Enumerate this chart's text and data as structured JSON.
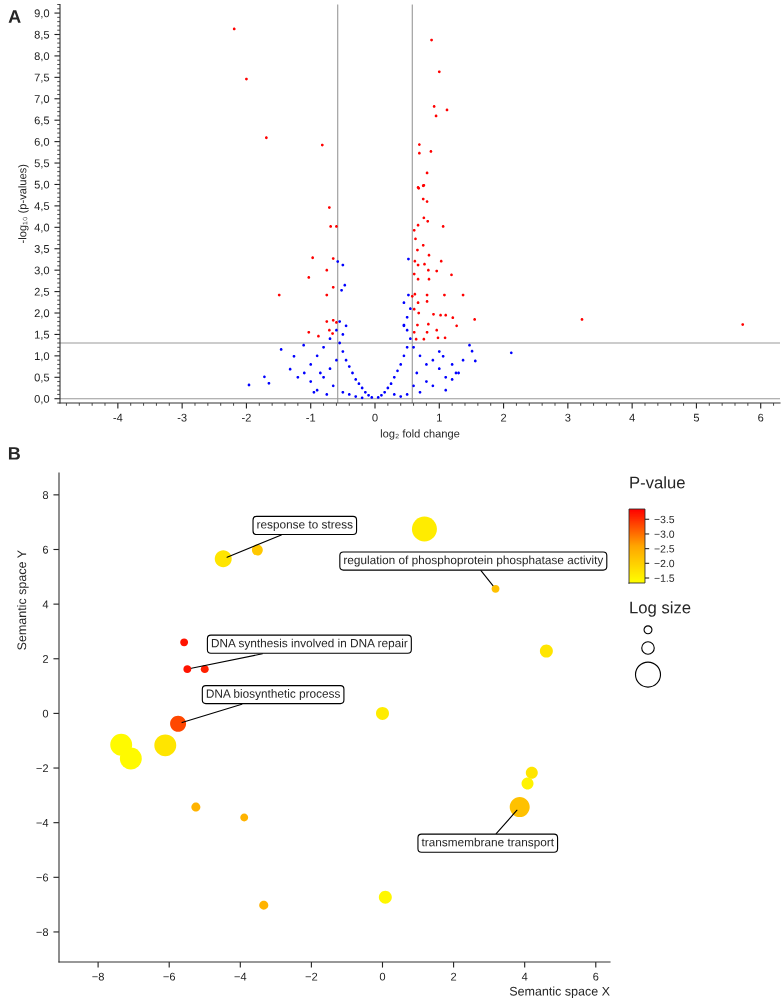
{
  "chart_data": [
    {
      "type": "scatter",
      "title": "A",
      "xlabel": "log₂ fold change",
      "ylabel": "-log₁₀ (p-values)",
      "marker": "circle",
      "grid": false,
      "legend": false,
      "xlim": [
        -4.9,
        6.3
      ],
      "ylim": [
        -0.1,
        9.2
      ],
      "xticks": [
        {
          "value": -4,
          "label": "-4"
        },
        {
          "value": -3,
          "label": "-3"
        },
        {
          "value": -2,
          "label": "-2"
        },
        {
          "value": -1,
          "label": "-1"
        },
        0,
        1,
        2,
        3,
        4,
        5,
        6
      ],
      "yticks": [
        {
          "value": 0,
          "label": "0,0"
        },
        {
          "value": 0.5,
          "label": "0,5"
        },
        {
          "value": 1,
          "label": "1,0"
        },
        {
          "value": 1.5,
          "label": "1,5"
        },
        {
          "value": 2,
          "label": "2,0"
        },
        {
          "value": 2.5,
          "label": "2,5"
        },
        {
          "value": 3,
          "label": "3,0"
        },
        {
          "value": 3.5,
          "label": "3,5"
        },
        {
          "value": 4,
          "label": "4,0"
        },
        {
          "value": 4.5,
          "label": "4,5"
        },
        {
          "value": 5,
          "label": "5,0"
        },
        {
          "value": 5.5,
          "label": "5,5"
        },
        {
          "value": 6,
          "label": "6,0"
        },
        {
          "value": 6.5,
          "label": "6,5"
        },
        {
          "value": 7,
          "label": "7,0"
        },
        {
          "value": 7.5,
          "label": "7,5"
        },
        {
          "value": 8,
          "label": "8,0"
        },
        {
          "value": 8.5,
          "label": "8,5"
        },
        {
          "value": 9,
          "label": "9,0"
        }
      ],
      "ref_lines": [
        {
          "axis": "y",
          "value": 0,
          "color": "#999999"
        },
        {
          "axis": "y",
          "value": 1.3,
          "color": "#999999"
        },
        {
          "axis": "x",
          "value": -0.58,
          "color": "#999999"
        },
        {
          "axis": "x",
          "value": 0.58,
          "color": "#999999"
        }
      ],
      "series": [
        {
          "color": "#0000ff",
          "x": [
            -0.05,
            -0.1,
            -0.15,
            -0.2,
            -0.25,
            -0.3,
            -0.35,
            -0.4,
            -0.45,
            -0.5,
            -0.55,
            -0.5,
            -0.45,
            -0.55,
            -0.6,
            -0.7,
            -0.8,
            -0.9,
            -1.0,
            -1.1,
            -1.2,
            -1.0,
            -0.9,
            -0.8,
            -0.7,
            -0.6,
            -0.65,
            -0.5,
            -0.4,
            -0.3,
            -0.2,
            -0.75,
            -0.85,
            -0.95,
            -0.58,
            -0.5,
            -0.47,
            -0.52,
            -1.11,
            -1.46,
            -1.26,
            -1.32,
            -1.96,
            -1.72,
            -1.65,
            0.05,
            0.1,
            0.15,
            0.2,
            0.25,
            0.3,
            0.35,
            0.4,
            0.45,
            0.5,
            0.55,
            0.5,
            0.45,
            0.5,
            0.55,
            0.6,
            0.7,
            0.8,
            0.9,
            1.0,
            1.1,
            1.2,
            1.3,
            1.0,
            1.2,
            0.6,
            0.7,
            0.5,
            0.4,
            0.9,
            0.8,
            1.1,
            0.3,
            0.65,
            0.52,
            0.52,
            0.45,
            0.45,
            2.12,
            1.47,
            1.51,
            1.56,
            1.37,
            1.26,
            1.06
          ],
          "values": [
            0.03,
            0.08,
            0.15,
            0.25,
            0.35,
            0.45,
            0.6,
            0.75,
            0.9,
            1.1,
            1.3,
            1.5,
            1.7,
            1.8,
            1.6,
            1.4,
            1.2,
            1.0,
            0.8,
            0.6,
            0.5,
            0.4,
            0.2,
            0.5,
            0.7,
            0.9,
            0.3,
            0.15,
            0.1,
            0.05,
            0.02,
            0.1,
            0.6,
            0.15,
            3.2,
            3.12,
            2.65,
            2.53,
            1.25,
            1.15,
            0.99,
            0.69,
            0.32,
            0.51,
            0.36,
            0.03,
            0.08,
            0.15,
            0.25,
            0.35,
            0.5,
            0.65,
            0.8,
            1.0,
            1.2,
            1.4,
            1.6,
            1.7,
            1.9,
            2.1,
            1.2,
            1.0,
            0.8,
            0.9,
            0.7,
            0.5,
            0.45,
            0.6,
            1.1,
            0.8,
            0.3,
            0.15,
            0.1,
            0.05,
            0.3,
            0.4,
            0.2,
            0.1,
            0.6,
            3.26,
            2.42,
            2.24,
            1.72,
            1.07,
            1.25,
            1.11,
            0.88,
            0.9,
            0.6,
            0.99
          ]
        },
        {
          "color": "#ff0000",
          "x": [
            -2.19,
            -2.0,
            -1.69,
            -0.82,
            0.88,
            1.0,
            0.92,
            1.12,
            0.95,
            0.69,
            0.69,
            0.87,
            0.81,
            0.68,
            0.75,
            -0.71,
            -0.69,
            -0.6,
            -0.97,
            -0.65,
            -0.75,
            -1.03,
            -0.65,
            -0.75,
            -1.49,
            -0.65,
            -0.75,
            -0.6,
            -1.03,
            -0.88,
            -0.71,
            -0.66,
            0.76,
            0.67,
            0.75,
            0.81,
            0.76,
            0.82,
            0.67,
            0.61,
            1.06,
            0.63,
            0.75,
            0.66,
            0.84,
            0.62,
            1.03,
            0.77,
            0.67,
            0.83,
            0.96,
            0.61,
            1.19,
            0.67,
            0.84,
            0.62,
            0.58,
            0.81,
            1.08,
            1.37,
            0.81,
            0.67,
            0.61,
            0.91,
            0.68,
            1.02,
            1.1,
            1.21,
            1.55,
            3.22,
            5.72,
            1.27,
            0.66,
            0.83,
            0.61,
            0.81,
            0.96,
            1.09,
            0.98,
            0.64,
            0.76
          ],
          "values": [
            8.63,
            7.46,
            6.09,
            5.92,
            8.37,
            7.63,
            6.82,
            6.74,
            6.6,
            5.93,
            5.73,
            5.77,
            5.27,
            4.91,
            4.97,
            4.46,
            4.02,
            4.02,
            3.29,
            3.27,
            3.0,
            2.83,
            2.6,
            2.42,
            2.42,
            1.83,
            1.8,
            1.78,
            1.55,
            1.46,
            1.6,
            1.52,
            4.98,
            4.93,
            4.66,
            4.6,
            4.22,
            4.14,
            4.05,
            3.93,
            4.02,
            3.73,
            3.58,
            3.47,
            3.35,
            3.21,
            3.21,
            3.14,
            3.12,
            3.0,
            2.98,
            2.91,
            2.89,
            2.79,
            2.79,
            2.44,
            2.39,
            2.42,
            2.42,
            2.42,
            2.27,
            2.24,
            2.09,
            1.97,
            2.0,
            1.95,
            1.95,
            1.89,
            1.85,
            1.85,
            1.73,
            1.7,
            1.72,
            1.74,
            1.55,
            1.55,
            1.6,
            1.42,
            1.42,
            1.39,
            1.39
          ]
        }
      ]
    },
    {
      "type": "bubble",
      "title": "B",
      "xlabel": "Semantic space X",
      "ylabel": "Semantic space Y",
      "clabel": "P-value",
      "legend_title": "Log size",
      "grid": false,
      "xlim": [
        -9.1,
        6.4
      ],
      "ylim": [
        -9.1,
        8.8
      ],
      "xticks": [
        {
          "value": -8,
          "label": "−8"
        },
        {
          "value": -6,
          "label": "−6"
        },
        {
          "value": -4,
          "label": "−4"
        },
        {
          "value": -2,
          "label": "−2"
        },
        0,
        2,
        4,
        6
      ],
      "yticks": [
        {
          "value": -8,
          "label": "−8"
        },
        {
          "value": -6,
          "label": "−6"
        },
        {
          "value": -4,
          "label": "−4"
        },
        {
          "value": -2,
          "label": "−2"
        },
        0,
        2,
        4,
        6,
        8
      ],
      "clim": [
        -1.33,
        -3.85
      ],
      "cticks": [
        {
          "value": -3.5,
          "label": "−3.5"
        },
        {
          "value": -3.0,
          "label": "−3.0"
        },
        {
          "value": -2.5,
          "label": "−2.5"
        },
        {
          "value": -2.0,
          "label": "−2.0"
        },
        {
          "value": -1.5,
          "label": "−1.5"
        }
      ],
      "x": [
        -4.48,
        -3.52,
        1.18,
        3.18,
        4.61,
        -5.58,
        -5.49,
        -5.0,
        0.0,
        -5.75,
        -7.35,
        -7.08,
        -6.11,
        -5.25,
        -3.89,
        -3.34,
        0.08,
        4.2,
        4.08,
        3.86
      ],
      "values": [
        5.66,
        5.98,
        6.75,
        4.56,
        2.28,
        2.6,
        1.62,
        1.62,
        0.0,
        -0.38,
        -1.15,
        -1.65,
        -1.17,
        -3.43,
        -3.81,
        -7.02,
        -6.73,
        -2.17,
        -2.57,
        -3.43
      ],
      "sizes": [
        0.46,
        0.19,
        1,
        0.1,
        0.27,
        0.1,
        0.1,
        0.1,
        0.27,
        0.41,
        0.77,
        0.77,
        0.77,
        0.13,
        0.1,
        0.13,
        0.27,
        0.23,
        0.23,
        0.64
      ],
      "cvalues": [
        -1.7,
        -2.1,
        -1.6,
        -2.2,
        -1.7,
        -3.7,
        -3.7,
        -3.6,
        -1.6,
        -3.3,
        -1.4,
        -1.4,
        -1.7,
        -2.4,
        -2.4,
        -2.4,
        -1.45,
        -1.7,
        -1.5,
        -2.2
      ],
      "annotations": [
        {
          "text": "response to stress",
          "x": -4.48,
          "y": 5.66
        },
        {
          "text": "regulation of phosphoprotein phosphatase activity",
          "x": 3.18,
          "y": 4.56
        },
        {
          "text": "DNA synthesis involved in DNA repair",
          "x": -5.49,
          "y": 1.62
        },
        {
          "text": "DNA biosynthetic process",
          "x": -5.75,
          "y": -0.38
        },
        {
          "text": "transmembrane transport",
          "x": 3.86,
          "y": -3.43
        }
      ]
    }
  ]
}
